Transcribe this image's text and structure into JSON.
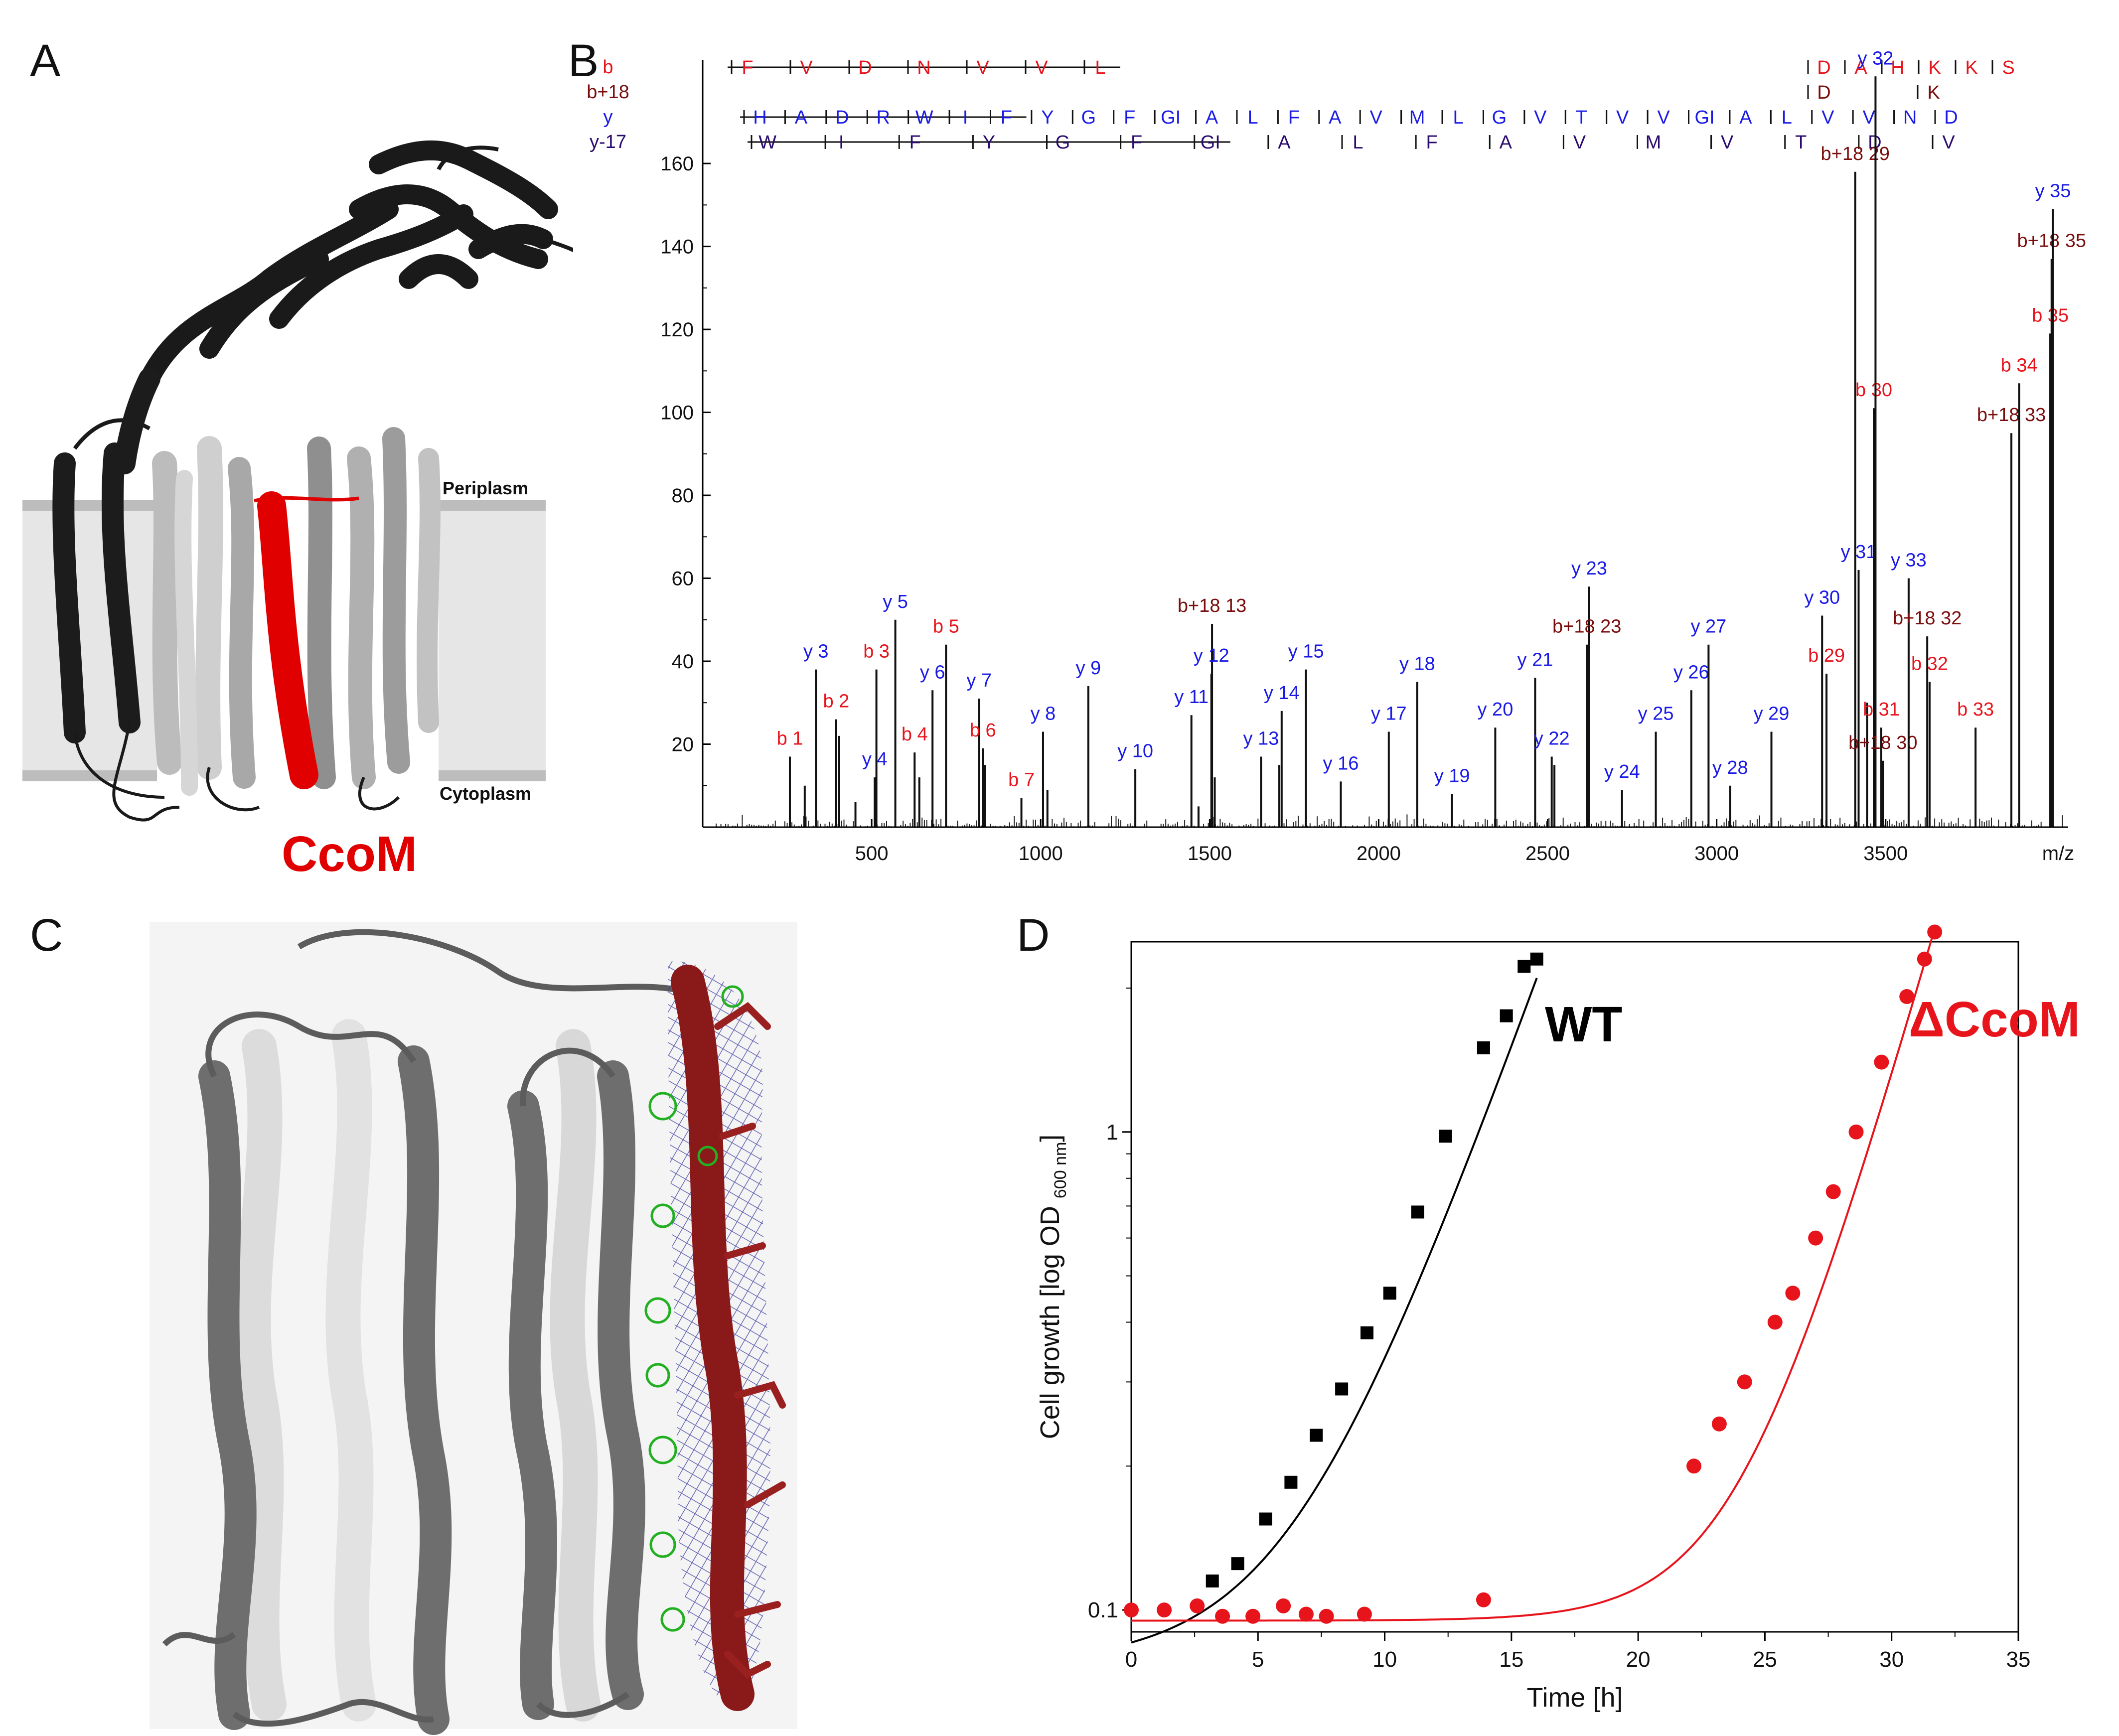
{
  "panels": {
    "a": {
      "label": "A",
      "protein_label": "CcoM",
      "periplasm": "Periplasm",
      "cytoplasm": "Cytoplasm"
    },
    "b": {
      "label": "B"
    },
    "c": {
      "label": "C"
    },
    "d": {
      "label": "D",
      "wt_label": "WT",
      "mutant_label": "ΔCcoM"
    }
  },
  "colors": {
    "b": "#e8141c",
    "b18": "#7a0e0e",
    "y": "#1a1ae6",
    "y17": "#2a0a6e",
    "helix_highlight": "#e00000",
    "wt": "#000000",
    "mutant": "#e8141c",
    "membrane": "#e6e6e6",
    "mesh_blue": "#3a3aa0",
    "mesh_green": "#22b022"
  },
  "chart_data": [
    {
      "type": "bar",
      "panel": "B",
      "title": "",
      "xlabel": "m/z",
      "ylabel": "",
      "xlim": [
        0,
        4040
      ],
      "ylim": [
        0,
        185
      ],
      "xticks": [
        500,
        1000,
        1500,
        2000,
        2500,
        3000,
        3500
      ],
      "yticks": [
        20,
        40,
        60,
        80,
        100,
        120,
        140,
        160
      ],
      "ion_rows": [
        {
          "name": "b",
          "tokens": [
            "F",
            "V",
            "D",
            "N",
            "V",
            "V",
            "L",
            "D",
            "A",
            "H",
            "K",
            "K",
            "S"
          ]
        },
        {
          "name": "b+18",
          "tokens": [
            "D",
            "K"
          ]
        },
        {
          "name": "y",
          "tokens": [
            "H",
            "A",
            "D",
            "R",
            "W",
            "I",
            "F",
            "Y",
            "G",
            "F",
            "GI",
            "A",
            "L",
            "F",
            "A",
            "V",
            "M",
            "L",
            "G",
            "V",
            "T",
            "V",
            "V",
            "GI",
            "A",
            "L",
            "V",
            "V",
            "N",
            "D"
          ]
        },
        {
          "name": "y-17",
          "tokens": [
            "W",
            "I",
            "F",
            "Y",
            "G",
            "F",
            "GI",
            "A",
            "L",
            "F",
            "A",
            "V",
            "M",
            "V",
            "T",
            "D",
            "V"
          ]
        }
      ],
      "peaks": [
        {
          "mz": 258,
          "i": 17,
          "label": "b 1",
          "ion": "b"
        },
        {
          "mz": 302,
          "i": 10
        },
        {
          "mz": 335,
          "i": 38,
          "label": "y 3",
          "ion": "y"
        },
        {
          "mz": 395,
          "i": 26,
          "label": "b 2",
          "ion": "b"
        },
        {
          "mz": 404,
          "i": 22
        },
        {
          "mz": 452,
          "i": 6
        },
        {
          "mz": 509,
          "i": 12,
          "label": "y 4",
          "ion": "y"
        },
        {
          "mz": 514,
          "i": 38,
          "label": "b 3",
          "ion": "b"
        },
        {
          "mz": 570,
          "i": 50,
          "label": "y 5",
          "ion": "y"
        },
        {
          "mz": 627,
          "i": 18,
          "label": "b 4",
          "ion": "b"
        },
        {
          "mz": 641,
          "i": 12
        },
        {
          "mz": 680,
          "i": 33,
          "label": "y 6",
          "ion": "y"
        },
        {
          "mz": 720,
          "i": 44,
          "label": "b 5",
          "ion": "b"
        },
        {
          "mz": 818,
          "i": 31,
          "label": "y 7",
          "ion": "y"
        },
        {
          "mz": 829,
          "i": 19,
          "label": "b 6",
          "ion": "b"
        },
        {
          "mz": 835,
          "i": 15
        },
        {
          "mz": 943,
          "i": 7,
          "label": "b 7",
          "ion": "b"
        },
        {
          "mz": 1007,
          "i": 23,
          "label": "y 8",
          "ion": "y"
        },
        {
          "mz": 1020,
          "i": 9
        },
        {
          "mz": 1141,
          "i": 34,
          "label": "y 9",
          "ion": "y"
        },
        {
          "mz": 1280,
          "i": 14,
          "label": "y 10",
          "ion": "y"
        },
        {
          "mz": 1446,
          "i": 27,
          "label": "y 11",
          "ion": "y"
        },
        {
          "mz": 1467,
          "i": 5
        },
        {
          "mz": 1507,
          "i": 49,
          "label": "b+18 13",
          "ion": "b18"
        },
        {
          "mz": 1515,
          "i": 12
        },
        {
          "mz": 1505,
          "i": 37,
          "label": "y 12",
          "ion": "y"
        },
        {
          "mz": 1652,
          "i": 17,
          "label": "y 13",
          "ion": "y"
        },
        {
          "mz": 1706,
          "i": 15
        },
        {
          "mz": 1713,
          "i": 28,
          "label": "y 14",
          "ion": "y"
        },
        {
          "mz": 1785,
          "i": 38,
          "label": "y 15",
          "ion": "y"
        },
        {
          "mz": 1888,
          "i": 11,
          "label": "y 16",
          "ion": "y"
        },
        {
          "mz": 2030,
          "i": 23,
          "label": "y 17",
          "ion": "y"
        },
        {
          "mz": 2114,
          "i": 35,
          "label": "y 18",
          "ion": "y"
        },
        {
          "mz": 2217,
          "i": 8,
          "label": "y 19",
          "ion": "y"
        },
        {
          "mz": 2345,
          "i": 24,
          "label": "y 20",
          "ion": "y"
        },
        {
          "mz": 2463,
          "i": 36,
          "label": "y 21",
          "ion": "y"
        },
        {
          "mz": 2512,
          "i": 17,
          "label": "y 22",
          "ion": "y"
        },
        {
          "mz": 2520,
          "i": 15
        },
        {
          "mz": 2623,
          "i": 58,
          "label": "y 23",
          "ion": "y"
        },
        {
          "mz": 2616,
          "i": 44,
          "label": "b+18 23",
          "ion": "b18"
        },
        {
          "mz": 2720,
          "i": 9,
          "label": "y 24",
          "ion": "y"
        },
        {
          "mz": 2820,
          "i": 23,
          "label": "y 25",
          "ion": "y"
        },
        {
          "mz": 2925,
          "i": 33,
          "label": "y 26",
          "ion": "y"
        },
        {
          "mz": 2976,
          "i": 44,
          "label": "y 27",
          "ion": "y"
        },
        {
          "mz": 3040,
          "i": 10,
          "label": "y 28",
          "ion": "y"
        },
        {
          "mz": 3162,
          "i": 23,
          "label": "y 29",
          "ion": "y"
        },
        {
          "mz": 3312,
          "i": 51,
          "label": "y 30",
          "ion": "y"
        },
        {
          "mz": 3325,
          "i": 37,
          "label": "b 29",
          "ion": "b"
        },
        {
          "mz": 3420,
          "i": 62,
          "label": "y 31",
          "ion": "y"
        },
        {
          "mz": 3410,
          "i": 158,
          "label": "b+18 29",
          "ion": "b18"
        },
        {
          "mz": 3445,
          "i": 30
        },
        {
          "mz": 3465,
          "i": 101,
          "label": "b 30",
          "ion": "b"
        },
        {
          "mz": 3470,
          "i": 181,
          "label": "y 32",
          "ion": "y"
        },
        {
          "mz": 3492,
          "i": 16,
          "label": "b+18 30",
          "ion": "b18"
        },
        {
          "mz": 3487,
          "i": 24,
          "label": "b 31",
          "ion": "b"
        },
        {
          "mz": 3568,
          "i": 60,
          "label": "y 33",
          "ion": "y"
        },
        {
          "mz": 3623,
          "i": 46,
          "label": "b+18 32",
          "ion": "b18"
        },
        {
          "mz": 3630,
          "i": 35,
          "label": "b 32",
          "ion": "b"
        },
        {
          "mz": 3766,
          "i": 24,
          "label": "b 33",
          "ion": "b"
        },
        {
          "mz": 3872,
          "i": 95,
          "label": "b+18 33",
          "ion": "b18"
        },
        {
          "mz": 3895,
          "i": 107,
          "label": "b 34",
          "ion": "b"
        },
        {
          "mz": 3987,
          "i": 119,
          "label": "b 35",
          "ion": "b"
        },
        {
          "mz": 3991,
          "i": 137,
          "label": "b+18 35",
          "ion": "b18"
        },
        {
          "mz": 3995,
          "i": 149,
          "label": "y 35",
          "ion": "y"
        }
      ]
    },
    {
      "type": "scatter",
      "panel": "D",
      "title": "",
      "xlabel": "Time [h]",
      "ylabel_main": "Cell growth [log OD",
      "ylabel_sub": "600 nm",
      "ylabel_end": "]",
      "xlim": [
        0,
        35
      ],
      "ylim": [
        0.09,
        2.5
      ],
      "yscale": "log",
      "xticks": [
        0,
        5,
        10,
        15,
        20,
        25,
        30,
        35
      ],
      "yticks": [
        {
          "v": 0.1,
          "label": "0.1"
        },
        {
          "v": 1,
          "label": "1"
        }
      ],
      "series": [
        {
          "name": "WT",
          "marker": "square",
          "points": [
            [
              3.2,
              0.115
            ],
            [
              4.2,
              0.125
            ],
            [
              5.3,
              0.155
            ],
            [
              6.3,
              0.185
            ],
            [
              7.3,
              0.232
            ],
            [
              8.3,
              0.29
            ],
            [
              9.3,
              0.38
            ],
            [
              10.2,
              0.46
            ],
            [
              11.3,
              0.68
            ],
            [
              12.4,
              0.98
            ],
            [
              13.9,
              1.5
            ],
            [
              14.8,
              1.75
            ],
            [
              15.5,
              2.22
            ],
            [
              16.0,
              2.3
            ]
          ]
        },
        {
          "name": "ΔCcoM",
          "marker": "circle",
          "points": [
            [
              0,
              0.1
            ],
            [
              1.3,
              0.1
            ],
            [
              2.6,
              0.102
            ],
            [
              3.6,
              0.097
            ],
            [
              4.8,
              0.097
            ],
            [
              6.0,
              0.102
            ],
            [
              6.9,
              0.098
            ],
            [
              7.7,
              0.097
            ],
            [
              9.2,
              0.098
            ],
            [
              13.9,
              0.105
            ],
            [
              22.2,
              0.2
            ],
            [
              23.2,
              0.245
            ],
            [
              24.2,
              0.3
            ],
            [
              25.4,
              0.4
            ],
            [
              26.1,
              0.46
            ],
            [
              27.0,
              0.6
            ],
            [
              27.7,
              0.75
            ],
            [
              28.6,
              1.0
            ],
            [
              29.6,
              1.4
            ],
            [
              30.6,
              1.92
            ],
            [
              31.3,
              2.3
            ],
            [
              31.7,
              2.62
            ]
          ]
        }
      ]
    }
  ]
}
